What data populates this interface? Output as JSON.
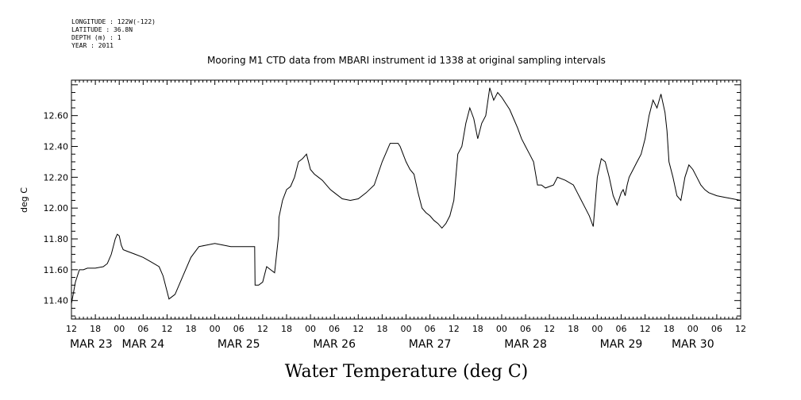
{
  "meta_lines": [
    "LONGITUDE : 122W(-122)",
    "LATITUDE : 36.8N",
    "DEPTH (m) : 1",
    "YEAR : 2011"
  ],
  "chart_data": {
    "type": "line",
    "title": "Mooring M1 CTD data from MBARI instrument id 1338 at original sampling intervals",
    "xlabel": "Water Temperature (deg C)",
    "ylabel": "deg C",
    "xlim_hours": [
      0,
      168
    ],
    "ylim": [
      11.28,
      12.83
    ],
    "yticks": [
      "11.40",
      "11.60",
      "11.80",
      "12.00",
      "12.20",
      "12.40",
      "12.60"
    ],
    "ytick_values": [
      11.4,
      11.6,
      11.8,
      12.0,
      12.2,
      12.4,
      12.6
    ],
    "xtick_labels": [
      "12",
      "18",
      "00",
      "06",
      "12",
      "18",
      "00",
      "06",
      "12",
      "18",
      "00",
      "06",
      "12",
      "18",
      "00",
      "06",
      "12",
      "18",
      "00",
      "06",
      "12",
      "18",
      "00",
      "06",
      "12",
      "18",
      "00",
      "06",
      "12"
    ],
    "day_labels": [
      {
        "label": "MAR 23",
        "hour": 0
      },
      {
        "label": "MAR 24",
        "hour": 18
      },
      {
        "label": "MAR 25",
        "hour": 42
      },
      {
        "label": "MAR 26",
        "hour": 66
      },
      {
        "label": "MAR 27",
        "hour": 90
      },
      {
        "label": "MAR 28",
        "hour": 114
      },
      {
        "label": "MAR 29",
        "hour": 138
      },
      {
        "label": "MAR 30",
        "hour": 156
      }
    ],
    "series": [
      {
        "x": [
          0,
          0.5,
          1,
          2,
          3,
          4,
          6,
          8,
          9,
          10,
          11,
          11.5,
          12,
          12.5,
          13,
          14,
          16,
          18,
          20,
          22,
          23,
          24,
          24.5,
          25,
          26,
          28,
          30,
          32,
          34,
          36,
          38,
          40,
          46,
          46.1,
          47,
          48,
          49,
          50,
          51,
          52,
          52.1,
          53,
          54,
          55,
          56,
          57,
          58,
          59,
          60,
          61,
          62,
          63,
          64,
          65,
          66,
          68,
          70,
          72,
          74,
          76,
          78,
          80,
          82,
          82.5,
          84,
          85,
          86,
          87,
          88,
          89,
          90,
          91,
          92,
          93,
          94,
          95,
          96,
          97,
          98,
          99,
          100,
          101,
          102,
          103,
          104,
          105,
          106,
          107,
          108,
          109,
          110,
          111,
          112,
          113,
          114,
          115,
          116,
          117,
          118,
          119,
          120,
          121,
          122,
          124,
          126,
          127,
          128,
          129,
          130,
          131,
          132,
          133,
          134,
          135,
          136,
          137,
          138,
          138.5,
          139,
          139.5,
          140,
          141,
          142,
          143,
          144,
          145,
          146,
          147,
          148,
          149,
          149.5,
          150,
          151,
          152,
          153,
          154,
          155,
          156,
          157,
          158,
          159,
          160,
          162,
          164,
          166,
          168
        ],
        "y": [
          11.38,
          11.45,
          11.52,
          11.6,
          11.6,
          11.61,
          11.61,
          11.62,
          11.64,
          11.7,
          11.8,
          11.83,
          11.82,
          11.76,
          11.73,
          11.72,
          11.7,
          11.68,
          11.65,
          11.62,
          11.56,
          11.46,
          11.41,
          11.42,
          11.44,
          11.56,
          11.68,
          11.75,
          11.76,
          11.77,
          11.76,
          11.75,
          11.75,
          11.5,
          11.5,
          11.52,
          11.62,
          11.6,
          11.58,
          11.82,
          11.94,
          12.05,
          12.12,
          12.14,
          12.2,
          12.3,
          12.32,
          12.35,
          12.25,
          12.22,
          12.2,
          12.18,
          12.15,
          12.12,
          12.1,
          12.06,
          12.05,
          12.06,
          12.1,
          12.15,
          12.3,
          12.42,
          12.42,
          12.4,
          12.3,
          12.25,
          12.22,
          12.1,
          12.0,
          11.97,
          11.95,
          11.92,
          11.9,
          11.87,
          11.9,
          11.95,
          12.05,
          12.35,
          12.4,
          12.55,
          12.65,
          12.58,
          12.45,
          12.55,
          12.6,
          12.78,
          12.7,
          12.75,
          12.72,
          12.68,
          12.64,
          12.58,
          12.52,
          12.45,
          12.4,
          12.35,
          12.3,
          12.15,
          12.15,
          12.13,
          12.14,
          12.15,
          12.2,
          12.18,
          12.15,
          12.1,
          12.05,
          12.0,
          11.95,
          11.88,
          12.2,
          12.32,
          12.3,
          12.2,
          12.08,
          12.02,
          12.1,
          12.12,
          12.08,
          12.15,
          12.2,
          12.25,
          12.3,
          12.35,
          12.45,
          12.6,
          12.7,
          12.65,
          12.74,
          12.62,
          12.5,
          12.3,
          12.2,
          12.08,
          12.05,
          12.2,
          12.28,
          12.25,
          12.2,
          12.15,
          12.12,
          12.1,
          12.08,
          12.07,
          12.06,
          12.05
        ]
      }
    ]
  }
}
